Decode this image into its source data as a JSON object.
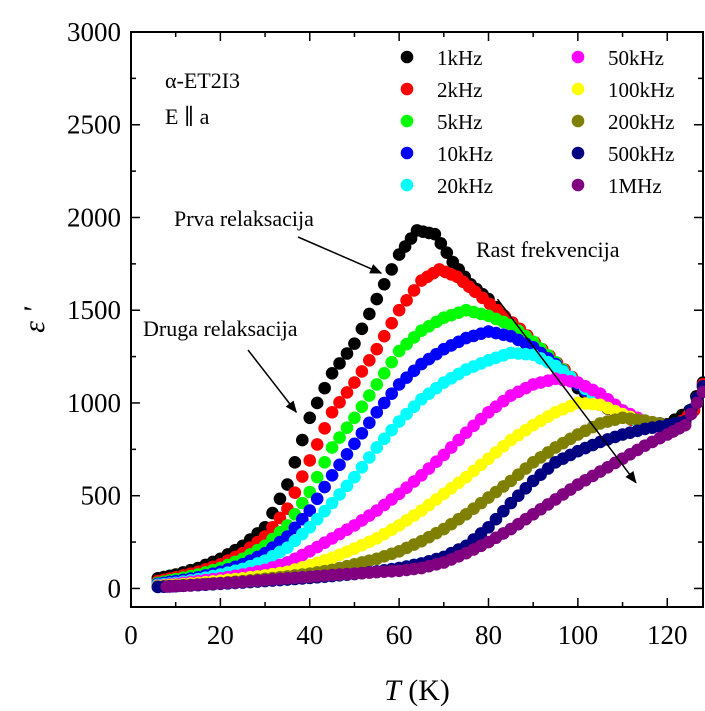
{
  "chart_data": {
    "type": "scatter",
    "xlabel_var": "T",
    "xlabel_unit": " (K)",
    "ylabel": "ε '",
    "xlim": [
      0,
      128
    ],
    "ylim": [
      -100,
      3000
    ],
    "xticks": [
      0,
      20,
      40,
      60,
      80,
      100,
      120
    ],
    "yticks": [
      0,
      500,
      1000,
      1500,
      2000,
      2500,
      3000
    ],
    "sample_line1": "α-ET2I3",
    "sample_line2": "E ∥ a",
    "legend_position": "top-right",
    "annotations": [
      {
        "text": "Prva relaksacija",
        "target": [
          56,
          1700
        ]
      },
      {
        "text": "Druga relaksacija",
        "target": [
          37,
          950
        ]
      },
      {
        "text": "Rast frekvencija",
        "start": [
          82,
          1560
        ],
        "end": [
          113,
          570
        ]
      }
    ],
    "series": [
      {
        "name": "1kHz",
        "color": "#000000",
        "points": [
          [
            6,
            55
          ],
          [
            10,
            75
          ],
          [
            15,
            110
          ],
          [
            20,
            160
          ],
          [
            25,
            230
          ],
          [
            30,
            330
          ],
          [
            35,
            560
          ],
          [
            40,
            920
          ],
          [
            45,
            1160
          ],
          [
            50,
            1320
          ],
          [
            55,
            1560
          ],
          [
            60,
            1800
          ],
          [
            64,
            1930
          ],
          [
            68,
            1910
          ],
          [
            72,
            1760
          ],
          [
            76,
            1640
          ],
          [
            80,
            1560
          ],
          [
            85,
            1430
          ],
          [
            90,
            1300
          ],
          [
            95,
            1200
          ],
          [
            100,
            1080
          ],
          [
            105,
            990
          ],
          [
            110,
            930
          ],
          [
            115,
            900
          ],
          [
            120,
            885
          ],
          [
            125,
            960
          ],
          [
            128,
            1110
          ]
        ]
      },
      {
        "name": "2kHz",
        "color": "#ff0000",
        "points": [
          [
            6,
            40
          ],
          [
            10,
            60
          ],
          [
            15,
            90
          ],
          [
            20,
            130
          ],
          [
            25,
            190
          ],
          [
            30,
            280
          ],
          [
            35,
            430
          ],
          [
            40,
            690
          ],
          [
            45,
            950
          ],
          [
            50,
            1110
          ],
          [
            55,
            1290
          ],
          [
            60,
            1500
          ],
          [
            65,
            1660
          ],
          [
            69,
            1720
          ],
          [
            73,
            1680
          ],
          [
            77,
            1600
          ],
          [
            82,
            1500
          ],
          [
            87,
            1400
          ],
          [
            92,
            1290
          ],
          [
            97,
            1180
          ],
          [
            102,
            1060
          ],
          [
            107,
            970
          ],
          [
            112,
            910
          ],
          [
            117,
            885
          ],
          [
            122,
            875
          ],
          [
            126,
            960
          ],
          [
            128,
            1100
          ]
        ]
      },
      {
        "name": "5kHz",
        "color": "#00ff00",
        "points": [
          [
            6,
            30
          ],
          [
            10,
            50
          ],
          [
            15,
            75
          ],
          [
            20,
            110
          ],
          [
            25,
            160
          ],
          [
            30,
            230
          ],
          [
            35,
            340
          ],
          [
            40,
            520
          ],
          [
            45,
            760
          ],
          [
            50,
            920
          ],
          [
            55,
            1100
          ],
          [
            60,
            1280
          ],
          [
            65,
            1390
          ],
          [
            70,
            1460
          ],
          [
            75,
            1500
          ],
          [
            80,
            1470
          ],
          [
            85,
            1420
          ],
          [
            90,
            1330
          ],
          [
            95,
            1220
          ],
          [
            100,
            1100
          ],
          [
            105,
            1000
          ],
          [
            110,
            930
          ],
          [
            115,
            895
          ],
          [
            120,
            880
          ],
          [
            124,
            900
          ],
          [
            128,
            1090
          ]
        ]
      },
      {
        "name": "10kHz",
        "color": "#0000ff",
        "points": [
          [
            6,
            25
          ],
          [
            10,
            40
          ],
          [
            15,
            60
          ],
          [
            20,
            90
          ],
          [
            25,
            130
          ],
          [
            30,
            190
          ],
          [
            35,
            280
          ],
          [
            40,
            420
          ],
          [
            45,
            610
          ],
          [
            50,
            780
          ],
          [
            55,
            950
          ],
          [
            60,
            1100
          ],
          [
            65,
            1210
          ],
          [
            70,
            1290
          ],
          [
            75,
            1350
          ],
          [
            80,
            1385
          ],
          [
            85,
            1360
          ],
          [
            90,
            1300
          ],
          [
            95,
            1210
          ],
          [
            100,
            1100
          ],
          [
            105,
            1000
          ],
          [
            110,
            930
          ],
          [
            115,
            890
          ],
          [
            120,
            875
          ],
          [
            124,
            900
          ],
          [
            128,
            1090
          ]
        ]
      },
      {
        "name": "20kHz",
        "color": "#00ffff",
        "points": [
          [
            6,
            20
          ],
          [
            10,
            30
          ],
          [
            15,
            50
          ],
          [
            20,
            75
          ],
          [
            25,
            105
          ],
          [
            30,
            150
          ],
          [
            35,
            220
          ],
          [
            40,
            330
          ],
          [
            45,
            460
          ],
          [
            50,
            600
          ],
          [
            55,
            760
          ],
          [
            60,
            900
          ],
          [
            65,
            1020
          ],
          [
            70,
            1110
          ],
          [
            75,
            1180
          ],
          [
            80,
            1230
          ],
          [
            85,
            1270
          ],
          [
            90,
            1260
          ],
          [
            95,
            1200
          ],
          [
            100,
            1110
          ],
          [
            105,
            1010
          ],
          [
            110,
            930
          ],
          [
            115,
            885
          ],
          [
            120,
            870
          ],
          [
            124,
            895
          ],
          [
            128,
            1090
          ]
        ]
      },
      {
        "name": "50kHz",
        "color": "#ff00ff",
        "points": [
          [
            6,
            15
          ],
          [
            10,
            25
          ],
          [
            15,
            40
          ],
          [
            20,
            55
          ],
          [
            25,
            75
          ],
          [
            30,
            100
          ],
          [
            35,
            140
          ],
          [
            40,
            200
          ],
          [
            45,
            270
          ],
          [
            50,
            340
          ],
          [
            55,
            420
          ],
          [
            60,
            510
          ],
          [
            65,
            610
          ],
          [
            70,
            720
          ],
          [
            75,
            840
          ],
          [
            80,
            950
          ],
          [
            85,
            1040
          ],
          [
            90,
            1100
          ],
          [
            95,
            1130
          ],
          [
            100,
            1110
          ],
          [
            105,
            1050
          ],
          [
            110,
            960
          ],
          [
            115,
            900
          ],
          [
            120,
            875
          ],
          [
            124,
            895
          ],
          [
            128,
            1090
          ]
        ]
      },
      {
        "name": "100kHz",
        "color": "#ffff00",
        "points": [
          [
            6,
            12
          ],
          [
            10,
            20
          ],
          [
            15,
            30
          ],
          [
            20,
            42
          ],
          [
            25,
            55
          ],
          [
            30,
            70
          ],
          [
            35,
            90
          ],
          [
            40,
            125
          ],
          [
            45,
            165
          ],
          [
            50,
            215
          ],
          [
            55,
            270
          ],
          [
            60,
            340
          ],
          [
            65,
            420
          ],
          [
            70,
            510
          ],
          [
            75,
            600
          ],
          [
            80,
            700
          ],
          [
            85,
            800
          ],
          [
            90,
            880
          ],
          [
            95,
            950
          ],
          [
            100,
            1000
          ],
          [
            105,
            990
          ],
          [
            110,
            940
          ],
          [
            115,
            895
          ],
          [
            120,
            875
          ],
          [
            124,
            895
          ],
          [
            128,
            1090
          ]
        ]
      },
      {
        "name": "200kHz",
        "color": "#808000",
        "points": [
          [
            6,
            10
          ],
          [
            10,
            15
          ],
          [
            15,
            22
          ],
          [
            20,
            30
          ],
          [
            25,
            40
          ],
          [
            30,
            52
          ],
          [
            35,
            65
          ],
          [
            40,
            80
          ],
          [
            45,
            100
          ],
          [
            50,
            130
          ],
          [
            55,
            160
          ],
          [
            60,
            200
          ],
          [
            65,
            255
          ],
          [
            70,
            320
          ],
          [
            75,
            400
          ],
          [
            80,
            490
          ],
          [
            85,
            580
          ],
          [
            90,
            680
          ],
          [
            95,
            760
          ],
          [
            100,
            830
          ],
          [
            105,
            890
          ],
          [
            110,
            920
          ],
          [
            115,
            905
          ],
          [
            120,
            880
          ],
          [
            124,
            895
          ],
          [
            128,
            1090
          ]
        ]
      },
      {
        "name": "500kHz",
        "color": "#000080",
        "points": [
          [
            6,
            8
          ],
          [
            10,
            12
          ],
          [
            15,
            18
          ],
          [
            20,
            25
          ],
          [
            25,
            32
          ],
          [
            30,
            40
          ],
          [
            35,
            48
          ],
          [
            40,
            57
          ],
          [
            45,
            67
          ],
          [
            50,
            78
          ],
          [
            55,
            92
          ],
          [
            60,
            110
          ],
          [
            65,
            135
          ],
          [
            70,
            170
          ],
          [
            75,
            230
          ],
          [
            80,
            330
          ],
          [
            85,
            460
          ],
          [
            90,
            580
          ],
          [
            95,
            680
          ],
          [
            100,
            740
          ],
          [
            105,
            790
          ],
          [
            110,
            830
          ],
          [
            115,
            860
          ],
          [
            120,
            880
          ],
          [
            124,
            900
          ],
          [
            128,
            1090
          ]
        ]
      },
      {
        "name": "1MHz",
        "color": "#800080",
        "points": [
          [
            8,
            10
          ],
          [
            12,
            15
          ],
          [
            16,
            22
          ],
          [
            20,
            28
          ],
          [
            25,
            35
          ],
          [
            30,
            45
          ],
          [
            35,
            55
          ],
          [
            40,
            63
          ],
          [
            45,
            72
          ],
          [
            50,
            80
          ],
          [
            55,
            88
          ],
          [
            60,
            95
          ],
          [
            65,
            110
          ],
          [
            70,
            140
          ],
          [
            75,
            190
          ],
          [
            80,
            250
          ],
          [
            85,
            320
          ],
          [
            90,
            400
          ],
          [
            95,
            480
          ],
          [
            100,
            560
          ],
          [
            105,
            630
          ],
          [
            110,
            700
          ],
          [
            115,
            770
          ],
          [
            120,
            830
          ],
          [
            124,
            880
          ],
          [
            128,
            1060
          ]
        ]
      }
    ]
  }
}
